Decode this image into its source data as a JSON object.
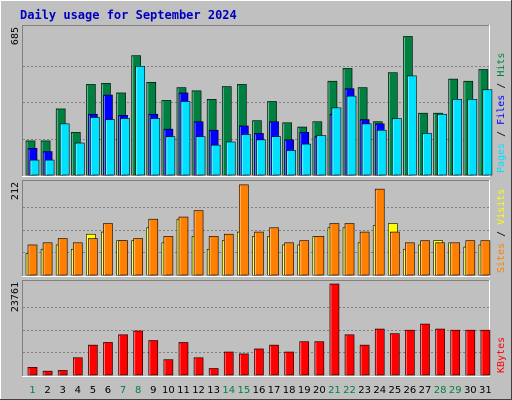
{
  "chart_data": {
    "type": "bar",
    "title": "Daily usage for September 2024",
    "categories": [
      "1",
      "2",
      "3",
      "4",
      "5",
      "6",
      "7",
      "8",
      "9",
      "10",
      "11",
      "12",
      "13",
      "14",
      "15",
      "16",
      "17",
      "18",
      "19",
      "20",
      "21",
      "22",
      "23",
      "24",
      "25",
      "26",
      "27",
      "28",
      "29",
      "30",
      "31"
    ],
    "weekend_days": [
      "1",
      "7",
      "8",
      "14",
      "15",
      "21",
      "22",
      "28",
      "29"
    ],
    "panels": [
      {
        "key": "hits",
        "ymax": 685,
        "ymax_label": "685",
        "series": [
          {
            "name": "Hits",
            "color": "#008040",
            "values": [
              160,
              160,
              310,
              200,
              425,
              430,
              385,
              560,
              435,
              350,
              410,
              395,
              355,
              415,
              425,
              255,
              345,
              245,
              225,
              250,
              440,
              500,
              410,
              250,
              480,
              650,
              290,
              290,
              450,
              440,
              495
            ]
          },
          {
            "name": "Files",
            "color": "#0000ff",
            "values": [
              125,
              110,
              0,
              0,
              285,
              375,
              280,
              0,
              285,
              215,
              385,
              250,
              210,
              0,
              230,
              195,
              250,
              165,
              200,
              180,
              285,
              405,
              260,
              240,
              0,
              0,
              0,
              0,
              0,
              0,
              0
            ]
          },
          {
            "name": "Pages",
            "color": "#00e0ff",
            "values": [
              70,
              70,
              240,
              150,
              270,
              260,
              265,
              510,
              265,
              180,
              345,
              180,
              140,
              155,
              190,
              165,
              180,
              115,
              145,
              185,
              315,
              370,
              240,
              210,
              265,
              465,
              195,
              285,
              355,
              355,
              400
            ]
          }
        ]
      },
      {
        "key": "visits",
        "ymax": 212,
        "ymax_label": "212",
        "series": [
          {
            "name": "Visits",
            "color": "#ffff00",
            "values": [
              50,
              60,
              70,
              60,
              95,
              100,
              80,
              80,
              110,
              75,
              130,
              90,
              60,
              80,
              100,
              90,
              90,
              70,
              70,
              90,
              110,
              110,
              75,
              115,
              120,
              60,
              70,
              80,
              75,
              65,
              70
            ]
          },
          {
            "name": "Sites",
            "color": "#ff8000",
            "values": [
              70,
              75,
              85,
              75,
              85,
              120,
              80,
              85,
              130,
              90,
              135,
              150,
              90,
              95,
              210,
              100,
              110,
              75,
              80,
              90,
              120,
              120,
              100,
              200,
              100,
              75,
              80,
              75,
              75,
              80,
              80
            ]
          }
        ]
      },
      {
        "key": "kbytes",
        "ymax": 23761,
        "ymax_label": "23761",
        "series": [
          {
            "name": "KBytes",
            "color": "#ff0000",
            "values": [
              2000,
              1000,
              1200,
              4500,
              7800,
              8500,
              10500,
              11500,
              9000,
              4000,
              8500,
              4500,
              1700,
              6000,
              5500,
              6800,
              7800,
              6000,
              8700,
              8700,
              23761,
              10500,
              7800,
              12000,
              10800,
              11700,
              13300,
              12000,
              11700,
              11700,
              11700
            ]
          }
        ]
      }
    ],
    "side_labels": {
      "hits": [
        {
          "text": "Pages",
          "color": "#00e0ff"
        },
        {
          "text": " / ",
          "color": "#000000"
        },
        {
          "text": "Files",
          "color": "#0000ff"
        },
        {
          "text": " / ",
          "color": "#000000"
        },
        {
          "text": "Hits",
          "color": "#008040"
        }
      ],
      "visits": [
        {
          "text": "Sites",
          "color": "#ff8000"
        },
        {
          "text": " / ",
          "color": "#000000"
        },
        {
          "text": "Visits",
          "color": "#ffff00"
        }
      ],
      "kbytes": [
        {
          "text": "KBytes",
          "color": "#ff0000"
        }
      ]
    },
    "colors": {
      "background": "#c0c0c0",
      "title": "#0000c0",
      "weekday_tick": "#000000",
      "weekend_tick": "#008040"
    }
  }
}
